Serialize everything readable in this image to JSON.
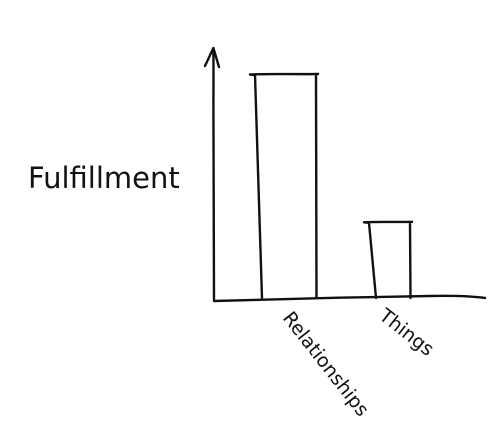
{
  "chart_data": {
    "type": "bar",
    "title": "",
    "xlabel": "",
    "ylabel": "Fulfillment",
    "categories": [
      "Relationships",
      "Things"
    ],
    "values": [
      100,
      34
    ],
    "ylim": [
      0,
      100
    ],
    "grid": false,
    "legend": "none",
    "style": "hand-drawn",
    "colors": {
      "ink": "#111111",
      "background": "#ffffff"
    }
  }
}
